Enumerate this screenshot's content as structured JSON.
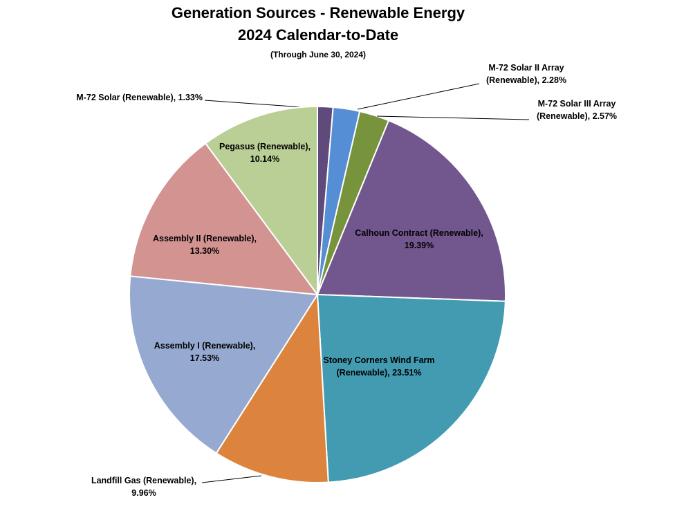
{
  "chart_data": {
    "type": "pie",
    "title": "Generation Sources - Renewable Energy",
    "subtitle": "2024 Calendar-to-Date",
    "note": "(Through June 30, 2024)",
    "start_angle": "12 o'clock, clockwise",
    "slices": [
      {
        "name": "M-72 Solar (Renewable)",
        "value": 1.33,
        "label": "M-72 Solar (Renewable), 1.33%",
        "color": "#604a7b"
      },
      {
        "name": "M-72 Solar II Array (Renewable)",
        "value": 2.28,
        "label_lines": [
          "M-72 Solar II Array",
          "(Renewable), 2.28%"
        ],
        "color": "#558ed5"
      },
      {
        "name": "M-72 Solar III Array (Renewable)",
        "value": 2.57,
        "label_lines": [
          "M-72 Solar III Array",
          "(Renewable), 2.57%"
        ],
        "color": "#77933c"
      },
      {
        "name": "Calhoun Contract (Renewable)",
        "value": 19.39,
        "label_lines": [
          "Calhoun Contract (Renewable),",
          "19.39%"
        ],
        "color": "#71578e"
      },
      {
        "name": "Stoney Corners Wind Farm (Renewable)",
        "value": 23.51,
        "label_lines": [
          "Stoney Corners Wind Farm",
          "(Renewable), 23.51%"
        ],
        "color": "#429bb1"
      },
      {
        "name": "Landfill Gas (Renewable)",
        "value": 9.96,
        "label_lines": [
          "Landfill Gas (Renewable),",
          "9.96%"
        ],
        "color": "#dc843e"
      },
      {
        "name": "Assembly I (Renewable)",
        "value": 17.53,
        "label_lines": [
          "Assembly I (Renewable),",
          "17.53%"
        ],
        "color": "#95a9d1"
      },
      {
        "name": "Assembly II (Renewable)",
        "value": 13.3,
        "label_lines": [
          "Assembly II (Renewable),",
          "13.30%"
        ],
        "color": "#d29391"
      },
      {
        "name": "Pegasus (Renewable)",
        "value": 10.14,
        "label_lines": [
          "Pegasus (Renewable),",
          "10.14%"
        ],
        "color": "#bacf96"
      }
    ]
  }
}
